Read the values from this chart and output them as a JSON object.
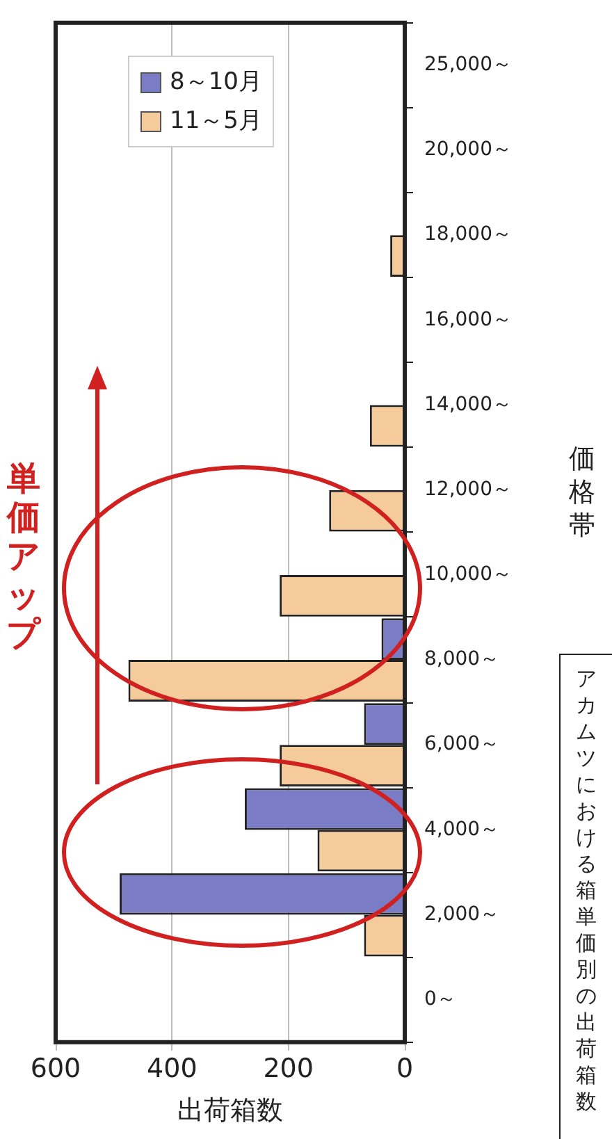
{
  "chart_data": {
    "type": "bar",
    "orientation": "horizontal",
    "annotations": [
      "単価アップ",
      "アカムツにおける箱単価別の出荷箱数"
    ],
    "xlabel": "出荷箱数",
    "ylabel": "価格帯",
    "categories": [
      "25,000～",
      "20,000～",
      "18,000～",
      "16,000～",
      "14,000～",
      "12,000～",
      "10,000～",
      "8,000～",
      "6,000～",
      "4,000～",
      "2,000～",
      "0～"
    ],
    "series": [
      {
        "name": "8～10月",
        "color": "#7b7cc6",
        "values": [
          0,
          0,
          0,
          0,
          0,
          0,
          0,
          40,
          70,
          275,
          490,
          0
        ]
      },
      {
        "name": "11～5月",
        "color": "#f5cb9b",
        "values": [
          0,
          0,
          25,
          0,
          60,
          130,
          215,
          475,
          215,
          150,
          70,
          0
        ]
      }
    ],
    "xlim": [
      600,
      0
    ],
    "xticks": [
      600,
      400,
      200,
      0
    ],
    "grid": "x",
    "legend": "top left"
  }
}
